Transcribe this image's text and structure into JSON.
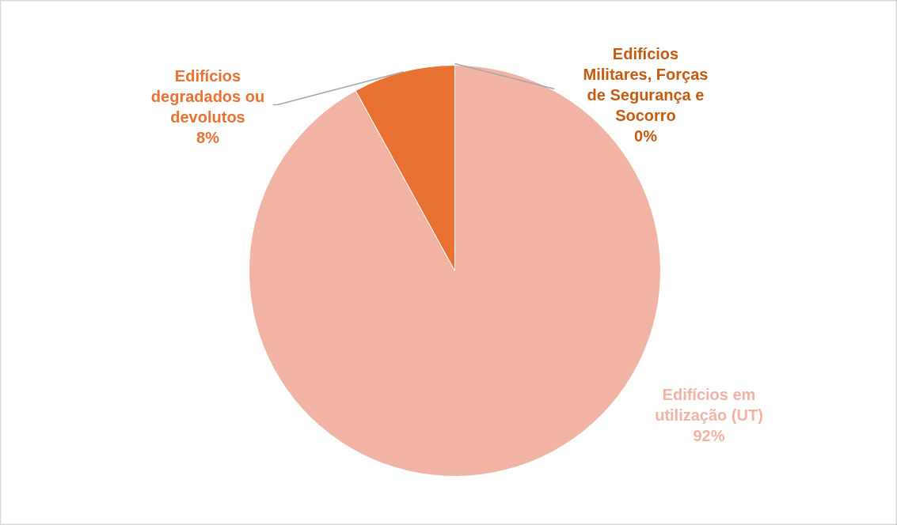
{
  "chart_data": {
    "type": "pie",
    "categories": [
      "Edifícios em utilização (UT)",
      "Edifícios degradados ou devolutos",
      "Edifícios Militares, Forças de Segurança e Socorro"
    ],
    "values": [
      92,
      8,
      0
    ],
    "colors": [
      "#f1b3a3",
      "#e97132",
      "#c55a11"
    ],
    "value_labels": [
      "92%",
      "8%",
      "0%"
    ]
  }
}
